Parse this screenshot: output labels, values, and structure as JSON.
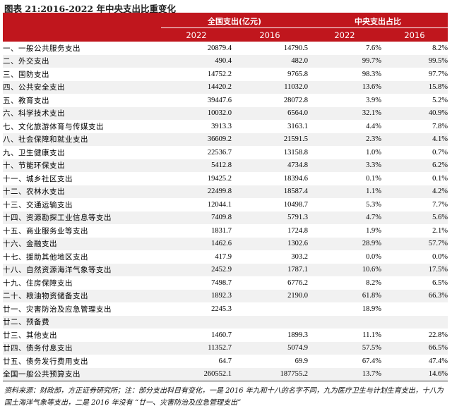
{
  "title": "图表 21:2016-2022 年中央支出比重变化",
  "header": {
    "group1": "全国支出(亿元)",
    "group2": "中央支出占比",
    "years": [
      "2022",
      "2016",
      "2022",
      "2016"
    ]
  },
  "rows": [
    {
      "name": "一、一般公共服务支出",
      "v2022": "20879.4",
      "v2016": "14790.5",
      "p2022": "7.6%",
      "p2016": "8.2%"
    },
    {
      "name": "二、外交支出",
      "v2022": "490.4",
      "v2016": "482.0",
      "p2022": "99.7%",
      "p2016": "99.5%"
    },
    {
      "name": "三、国防支出",
      "v2022": "14752.2",
      "v2016": "9765.8",
      "p2022": "98.3%",
      "p2016": "97.7%"
    },
    {
      "name": "四、公共安全支出",
      "v2022": "14420.2",
      "v2016": "11032.0",
      "p2022": "13.6%",
      "p2016": "15.8%"
    },
    {
      "name": "五、教育支出",
      "v2022": "39447.6",
      "v2016": "28072.8",
      "p2022": "3.9%",
      "p2016": "5.2%"
    },
    {
      "name": "六、科学技术支出",
      "v2022": "10032.0",
      "v2016": "6564.0",
      "p2022": "32.1%",
      "p2016": "40.9%"
    },
    {
      "name": "七、文化旅游体育与传媒支出",
      "v2022": "3913.3",
      "v2016": "3163.1",
      "p2022": "4.4%",
      "p2016": "7.8%"
    },
    {
      "name": "八、社会保障和就业支出",
      "v2022": "36609.2",
      "v2016": "21591.5",
      "p2022": "2.3%",
      "p2016": "4.1%"
    },
    {
      "name": "九、卫生健康支出",
      "v2022": "22536.7",
      "v2016": "13158.8",
      "p2022": "1.0%",
      "p2016": "0.7%"
    },
    {
      "name": "十、节能环保支出",
      "v2022": "5412.8",
      "v2016": "4734.8",
      "p2022": "3.3%",
      "p2016": "6.2%"
    },
    {
      "name": "十一、城乡社区支出",
      "v2022": "19425.2",
      "v2016": "18394.6",
      "p2022": "0.1%",
      "p2016": "0.1%"
    },
    {
      "name": "十二、农林水支出",
      "v2022": "22499.8",
      "v2016": "18587.4",
      "p2022": "1.1%",
      "p2016": "4.2%"
    },
    {
      "name": "十三、交通运输支出",
      "v2022": "12044.1",
      "v2016": "10498.7",
      "p2022": "5.3%",
      "p2016": "7.7%"
    },
    {
      "name": "十四、资源勘探工业信息等支出",
      "v2022": "7409.8",
      "v2016": "5791.3",
      "p2022": "4.7%",
      "p2016": "5.6%"
    },
    {
      "name": "十五、商业服务业等支出",
      "v2022": "1831.7",
      "v2016": "1724.8",
      "p2022": "1.9%",
      "p2016": "2.1%"
    },
    {
      "name": "十六、金融支出",
      "v2022": "1462.6",
      "v2016": "1302.6",
      "p2022": "28.9%",
      "p2016": "57.7%"
    },
    {
      "name": "十七、援助其他地区支出",
      "v2022": "417.9",
      "v2016": "303.2",
      "p2022": "0.0%",
      "p2016": "0.0%"
    },
    {
      "name": "十八、自然资源海洋气象等支出",
      "v2022": "2452.9",
      "v2016": "1787.1",
      "p2022": "10.6%",
      "p2016": "17.5%"
    },
    {
      "name": "十九、住房保障支出",
      "v2022": "7498.7",
      "v2016": "6776.2",
      "p2022": "8.2%",
      "p2016": "6.5%"
    },
    {
      "name": "二十、粮油物资储备支出",
      "v2022": "1892.3",
      "v2016": "2190.0",
      "p2022": "61.8%",
      "p2016": "66.3%"
    },
    {
      "name": "廿一、灾害防治及应急管理支出",
      "v2022": "2245.3",
      "v2016": "",
      "p2022": "18.9%",
      "p2016": ""
    },
    {
      "name": "廿二、预备费",
      "v2022": "",
      "v2016": "",
      "p2022": "",
      "p2016": ""
    },
    {
      "name": "廿三、其他支出",
      "v2022": "1460.7",
      "v2016": "1899.3",
      "p2022": "11.1%",
      "p2016": "22.8%"
    },
    {
      "name": "廿四、债务付息支出",
      "v2022": "11352.7",
      "v2016": "5074.9",
      "p2022": "57.5%",
      "p2016": "66.5%"
    },
    {
      "name": "廿五、债务发行费用支出",
      "v2022": "64.7",
      "v2016": "69.9",
      "p2022": "67.4%",
      "p2016": "47.4%"
    },
    {
      "name": "全国一般公共预算支出",
      "v2022": "260552.1",
      "v2016": "187755.2",
      "p2022": "13.7%",
      "p2016": "14.6%"
    }
  ],
  "note": "资料来源：财政部，方正证券研究所；注：部分支出科目有变化，一是 2016 年九和十八的名字不同，九为医疗卫生与计划生育支出，十八为国土海洋气象等支出，二是 2016 年没有 “廿一、灾害防治及应急管理支出”",
  "colors": {
    "header_bg": "#c0161d",
    "header_text": "#ffffff",
    "shade_row": "#f1f1f1"
  }
}
